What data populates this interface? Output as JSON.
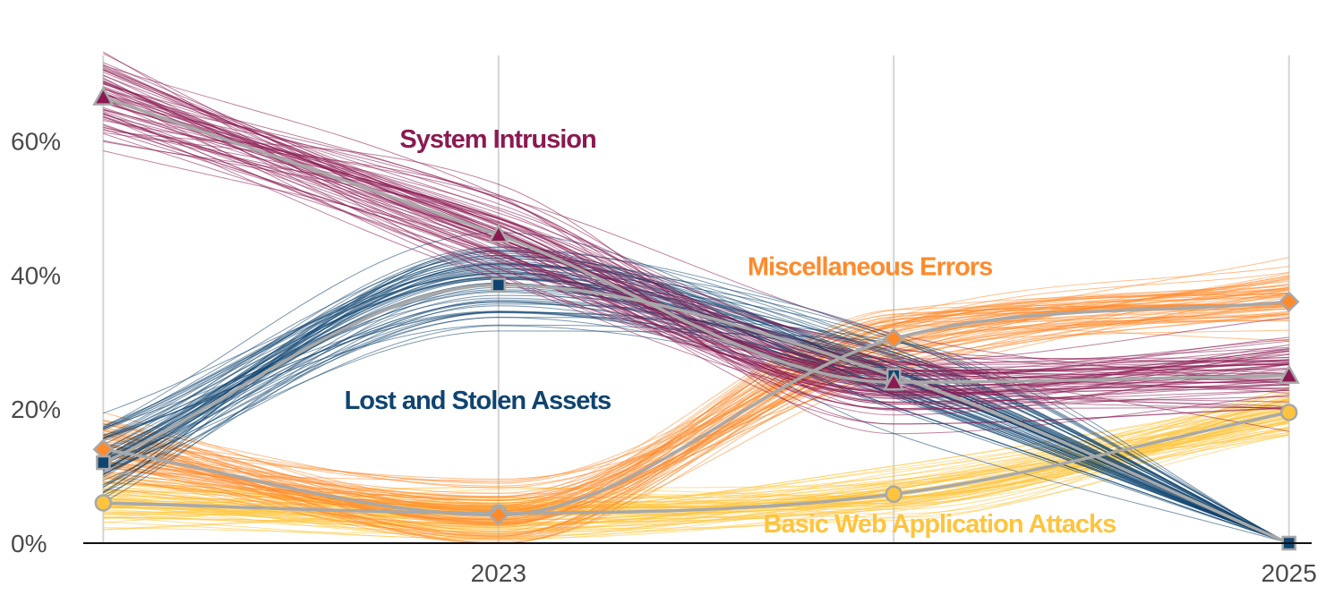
{
  "chart_data": {
    "type": "line",
    "title": "",
    "xlabel": "",
    "ylabel": "",
    "x": [
      2022,
      2023,
      2024,
      2025
    ],
    "x_tick_labels": [
      {
        "x": 2023,
        "label": "2023"
      },
      {
        "x": 2025,
        "label": "2025"
      }
    ],
    "y_ticks": [
      {
        "value": 0,
        "label": "0%"
      },
      {
        "value": 20,
        "label": "20%"
      },
      {
        "value": 40,
        "label": "40%"
      },
      {
        "value": 60,
        "label": "60%"
      }
    ],
    "xlim": [
      2021.92,
      2025.08
    ],
    "ylim": [
      0,
      77
    ],
    "grid": "vertical",
    "series": [
      {
        "name": "System Intrusion",
        "color": "#8b1a52",
        "marker": "triangle",
        "values": [
          66.5,
          46,
          24,
          25
        ],
        "spread": 6
      },
      {
        "name": "Lost and Stolen Assets",
        "color": "#0f4470",
        "marker": "square",
        "values": [
          12,
          38.5,
          25,
          0
        ],
        "spread": 5.5
      },
      {
        "name": "Miscellaneous Errors",
        "color": "#ff8a2b",
        "marker": "diamond",
        "values": [
          14,
          4.2,
          30.5,
          36
        ],
        "spread": 4.5
      },
      {
        "name": "Basic Web Application Attacks",
        "color": "#ffc43d",
        "marker": "circle",
        "values": [
          6,
          4.5,
          7.3,
          19.5
        ],
        "spread": 3.5
      }
    ]
  }
}
